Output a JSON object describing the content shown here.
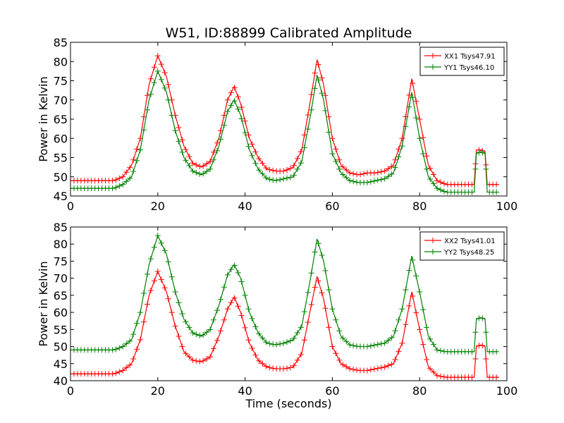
{
  "chart_data": [
    {
      "type": "line",
      "title": "W51, ID:88899 Calibrated Amplitude",
      "xlabel": "",
      "ylabel": "Power in Kelvin",
      "xlim": [
        0,
        100
      ],
      "ylim": [
        45,
        85
      ],
      "xticks": [
        "0",
        "20",
        "40",
        "60",
        "80",
        "100"
      ],
      "yticks": [
        "45",
        "50",
        "55",
        "60",
        "65",
        "70",
        "75",
        "80",
        "85"
      ],
      "legend_position": "top-right",
      "grid": false,
      "marker": "+",
      "series": [
        {
          "name": "XX1 Tsys47.91",
          "color": "#ff0000",
          "x": [
            0,
            5,
            10,
            12,
            14,
            16,
            18,
            20,
            22,
            24,
            26,
            28,
            30,
            32,
            34,
            36,
            37.5,
            39,
            41,
            43,
            45,
            47,
            49,
            51,
            53,
            55,
            56.5,
            58,
            60,
            62,
            64,
            66,
            68,
            70,
            72,
            74,
            76,
            78.2,
            80,
            82,
            84,
            86,
            88,
            90,
            92,
            92.5,
            93,
            94,
            95,
            95.5,
            96,
            98
          ],
          "y": [
            49,
            49,
            49,
            50,
            53,
            60,
            74,
            81.5,
            76,
            66,
            58,
            53.5,
            52.5,
            54,
            60,
            70,
            73.5,
            69,
            60,
            55,
            52,
            51.5,
            51.5,
            52.5,
            57,
            70,
            80.5,
            74,
            60,
            53,
            51,
            50.5,
            51,
            51,
            51.5,
            53,
            60,
            75.5,
            65,
            53,
            49,
            48,
            48,
            48,
            48,
            48,
            57,
            57,
            56.5,
            48,
            48,
            48
          ]
        },
        {
          "name": "YY1 Tsys46.10",
          "color": "#008000",
          "x": [
            0,
            5,
            10,
            12,
            14,
            16,
            18,
            20,
            22,
            24,
            26,
            28,
            30,
            32,
            34,
            36,
            37.5,
            39,
            41,
            43,
            45,
            47,
            49,
            51,
            53,
            55,
            56.5,
            58,
            60,
            62,
            64,
            66,
            68,
            70,
            72,
            74,
            76,
            78.2,
            80,
            82,
            84,
            86,
            88,
            90,
            92,
            92.5,
            93,
            94,
            95,
            95.5,
            96,
            98
          ],
          "y": [
            47,
            47,
            47,
            48,
            50,
            57,
            70,
            77.5,
            72,
            62,
            55,
            51.5,
            50.5,
            52,
            58,
            67,
            70,
            66,
            57,
            52,
            49.5,
            49,
            49.5,
            50,
            54,
            66,
            76.5,
            70,
            56,
            51,
            49,
            48.5,
            48.5,
            49,
            49.5,
            51,
            58,
            72,
            60,
            50,
            47,
            46,
            46,
            46,
            46,
            46,
            56,
            56.5,
            56,
            46,
            46,
            46
          ]
        }
      ]
    },
    {
      "type": "line",
      "title": "",
      "xlabel": "Time (seconds)",
      "ylabel": "Power in Kelvin",
      "xlim": [
        0,
        100
      ],
      "ylim": [
        40,
        85
      ],
      "xticks": [
        "0",
        "20",
        "40",
        "60",
        "80",
        "100"
      ],
      "yticks": [
        "40",
        "45",
        "50",
        "55",
        "60",
        "65",
        "70",
        "75",
        "80",
        "85"
      ],
      "legend_position": "top-right",
      "grid": false,
      "marker": "+",
      "series": [
        {
          "name": "XX2 Tsys41.01",
          "color": "#ff0000",
          "x": [
            0,
            5,
            10,
            12,
            14,
            16,
            18,
            20,
            22,
            24,
            26,
            28,
            30,
            32,
            34,
            36,
            37.5,
            39,
            41,
            43,
            45,
            47,
            49,
            51,
            53,
            55,
            56.5,
            58,
            60,
            62,
            64,
            66,
            68,
            70,
            72,
            74,
            76,
            78.2,
            80,
            82,
            84,
            86,
            88,
            90,
            92,
            92.5,
            93,
            94,
            95,
            95.5,
            96,
            98
          ],
          "y": [
            42,
            42,
            42,
            43,
            45,
            52,
            65,
            72,
            66,
            56,
            48.5,
            46,
            45.5,
            47,
            53,
            61,
            64.5,
            60,
            51,
            46,
            44,
            43.5,
            43.5,
            44,
            48,
            61,
            70.5,
            64,
            50,
            45,
            43.5,
            43,
            43,
            43.5,
            44,
            45,
            51,
            66,
            55,
            44,
            41.5,
            41,
            41,
            41,
            41,
            41,
            50,
            50.5,
            50,
            41,
            41,
            41
          ]
        },
        {
          "name": "YY2 Tsys48.25",
          "color": "#008000",
          "x": [
            0,
            5,
            10,
            12,
            14,
            16,
            18,
            20,
            22,
            24,
            26,
            28,
            30,
            32,
            34,
            36,
            37.5,
            39,
            41,
            43,
            45,
            47,
            49,
            51,
            53,
            55,
            56.5,
            58,
            60,
            62,
            64,
            66,
            68,
            70,
            72,
            74,
            76,
            78.2,
            80,
            82,
            84,
            86,
            88,
            90,
            92,
            92.5,
            93,
            94,
            95,
            95.5,
            96,
            98
          ],
          "y": [
            49,
            49,
            49,
            50,
            52,
            60,
            74,
            82.5,
            77,
            66,
            58,
            54,
            53,
            55,
            62,
            71,
            74,
            70,
            60,
            54,
            51,
            50.5,
            51,
            52,
            56,
            70,
            81.5,
            75,
            61,
            53,
            50.5,
            50,
            50,
            50.5,
            51,
            53,
            61,
            76.5,
            66,
            53,
            49,
            48.5,
            48.5,
            48.5,
            48.5,
            48.5,
            58,
            58.5,
            58,
            48.5,
            48.5,
            48.5
          ]
        }
      ]
    }
  ]
}
